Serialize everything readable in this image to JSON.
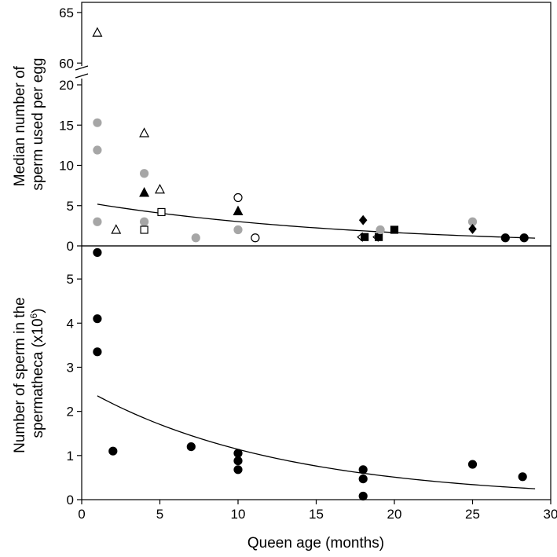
{
  "chart_data": [
    {
      "id": "top",
      "type": "scatter",
      "ylabel_lines": [
        "Median number of",
        "sperm used per egg"
      ],
      "xlim": [
        0,
        30
      ],
      "ylim_lower": [
        0,
        20
      ],
      "ylim_upper": [
        58,
        66
      ],
      "yticks_lower": [
        0,
        5,
        10,
        15,
        20
      ],
      "yticks_upper": [
        60,
        65
      ],
      "y_break": true,
      "points": [
        {
          "x": 1,
          "y": 63,
          "marker": "triangle",
          "fill": "open"
        },
        {
          "x": 1,
          "y": 15.3,
          "marker": "circle",
          "fill": "gray"
        },
        {
          "x": 1,
          "y": 11.9,
          "marker": "circle",
          "fill": "gray"
        },
        {
          "x": 1,
          "y": 3,
          "marker": "circle",
          "fill": "gray"
        },
        {
          "x": 2.2,
          "y": 2,
          "marker": "triangle",
          "fill": "open"
        },
        {
          "x": 4,
          "y": 14,
          "marker": "triangle",
          "fill": "open"
        },
        {
          "x": 4,
          "y": 9,
          "marker": "circle",
          "fill": "gray"
        },
        {
          "x": 4,
          "y": 6.6,
          "marker": "triangle",
          "fill": "black"
        },
        {
          "x": 4,
          "y": 3,
          "marker": "circle",
          "fill": "gray"
        },
        {
          "x": 4,
          "y": 2,
          "marker": "square",
          "fill": "open"
        },
        {
          "x": 5,
          "y": 7,
          "marker": "triangle",
          "fill": "open"
        },
        {
          "x": 5.1,
          "y": 4.2,
          "marker": "square",
          "fill": "open"
        },
        {
          "x": 7.3,
          "y": 1,
          "marker": "circle",
          "fill": "gray"
        },
        {
          "x": 10,
          "y": 6,
          "marker": "circle",
          "fill": "open"
        },
        {
          "x": 10,
          "y": 4.3,
          "marker": "triangle",
          "fill": "black"
        },
        {
          "x": 10,
          "y": 2,
          "marker": "circle",
          "fill": "gray"
        },
        {
          "x": 11.1,
          "y": 1,
          "marker": "circle",
          "fill": "open"
        },
        {
          "x": 18,
          "y": 3.2,
          "marker": "diamond",
          "fill": "black"
        },
        {
          "x": 17.9,
          "y": 1.1,
          "marker": "diamond-left",
          "fill": "open"
        },
        {
          "x": 18.1,
          "y": 1.1,
          "marker": "square",
          "fill": "black"
        },
        {
          "x": 18.9,
          "y": 1.1,
          "marker": "diamond-left",
          "fill": "open"
        },
        {
          "x": 19,
          "y": 1.1,
          "marker": "square",
          "fill": "black"
        },
        {
          "x": 19.1,
          "y": 2,
          "marker": "circle",
          "fill": "gray"
        },
        {
          "x": 20,
          "y": 2,
          "marker": "square",
          "fill": "black"
        },
        {
          "x": 25,
          "y": 3,
          "marker": "circle",
          "fill": "gray"
        },
        {
          "x": 25,
          "y": 2.1,
          "marker": "diamond",
          "fill": "black"
        },
        {
          "x": 27.1,
          "y": 1,
          "marker": "circle",
          "fill": "black"
        },
        {
          "x": 28.3,
          "y": 1,
          "marker": "circle",
          "fill": "black"
        }
      ],
      "fit": {
        "type": "exponential",
        "x_range": [
          1,
          29
        ],
        "a": 5.5,
        "b": 0.06
      }
    },
    {
      "id": "bottom",
      "type": "scatter",
      "ylabel_lines": [
        "Number of sperm in the",
        "spermatheca (x10",
        "6",
        ")"
      ],
      "xlabel": "Queen age (months)",
      "xlim": [
        0,
        30
      ],
      "xticks": [
        0,
        5,
        10,
        15,
        20,
        25,
        30
      ],
      "ylim": [
        0,
        5.75
      ],
      "yticks": [
        0,
        1,
        2,
        3,
        4,
        5
      ],
      "points": [
        {
          "x": 1,
          "y": 5.6
        },
        {
          "x": 1,
          "y": 4.1
        },
        {
          "x": 1,
          "y": 3.35
        },
        {
          "x": 2,
          "y": 1.1
        },
        {
          "x": 7,
          "y": 1.2
        },
        {
          "x": 10,
          "y": 1.05
        },
        {
          "x": 10,
          "y": 0.88
        },
        {
          "x": 10,
          "y": 0.68
        },
        {
          "x": 18,
          "y": 0.68
        },
        {
          "x": 18,
          "y": 0.47
        },
        {
          "x": 18,
          "y": 0.08
        },
        {
          "x": 25,
          "y": 0.8
        },
        {
          "x": 28.2,
          "y": 0.52
        }
      ],
      "fit": {
        "type": "exponential",
        "x_range": [
          1,
          29
        ],
        "a": 2.55,
        "b": 0.0805
      }
    }
  ]
}
